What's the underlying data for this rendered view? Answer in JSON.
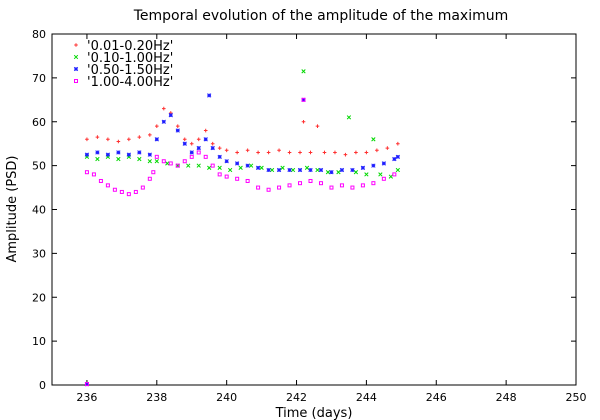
{
  "chart_data": {
    "type": "scatter",
    "title": "Temporal evolution of the amplitude of the maximum",
    "xlabel": "Time (days)",
    "ylabel": "Amplitude (PSD)",
    "xlim": [
      235,
      250
    ],
    "ylim": [
      0,
      80
    ],
    "xticks": [
      236,
      238,
      240,
      242,
      244,
      246,
      248,
      250
    ],
    "yticks": [
      0,
      10,
      20,
      30,
      40,
      50,
      60,
      70,
      80
    ],
    "grid": false,
    "legend_position": "top-left",
    "series": [
      {
        "name": "'0.01-0.20Hz'",
        "color": "#ff3030",
        "marker": "plus",
        "points": [
          [
            236.0,
            0.2
          ],
          [
            236.0,
            56.0
          ],
          [
            236.3,
            56.5
          ],
          [
            236.6,
            56.0
          ],
          [
            236.9,
            55.5
          ],
          [
            237.2,
            56.0
          ],
          [
            237.5,
            56.5
          ],
          [
            237.8,
            57.0
          ],
          [
            238.0,
            59.0
          ],
          [
            238.2,
            63.0
          ],
          [
            238.4,
            62.0
          ],
          [
            238.6,
            59.0
          ],
          [
            238.8,
            56.0
          ],
          [
            239.0,
            55.0
          ],
          [
            239.2,
            56.0
          ],
          [
            239.4,
            58.0
          ],
          [
            239.6,
            55.0
          ],
          [
            239.8,
            54.0
          ],
          [
            240.0,
            53.5
          ],
          [
            240.3,
            53.0
          ],
          [
            240.6,
            53.5
          ],
          [
            240.9,
            53.0
          ],
          [
            241.2,
            53.0
          ],
          [
            241.5,
            53.5
          ],
          [
            241.8,
            53.0
          ],
          [
            242.1,
            53.0
          ],
          [
            242.2,
            60.0
          ],
          [
            242.4,
            53.0
          ],
          [
            242.6,
            59.0
          ],
          [
            242.8,
            53.0
          ],
          [
            243.1,
            53.0
          ],
          [
            243.4,
            52.5
          ],
          [
            243.7,
            53.0
          ],
          [
            244.0,
            53.0
          ],
          [
            244.3,
            53.5
          ],
          [
            244.6,
            54.0
          ],
          [
            244.9,
            55.0
          ]
        ]
      },
      {
        "name": "'0.10-1.00Hz'",
        "color": "#00d800",
        "marker": "x",
        "points": [
          [
            236.0,
            0.2
          ],
          [
            236.0,
            52.0
          ],
          [
            236.3,
            51.5
          ],
          [
            236.6,
            52.0
          ],
          [
            236.9,
            51.5
          ],
          [
            237.2,
            52.0
          ],
          [
            237.5,
            51.5
          ],
          [
            237.8,
            51.0
          ],
          [
            238.0,
            51.0
          ],
          [
            238.3,
            50.5
          ],
          [
            238.6,
            50.0
          ],
          [
            238.9,
            50.0
          ],
          [
            239.2,
            50.0
          ],
          [
            239.5,
            49.5
          ],
          [
            239.8,
            49.5
          ],
          [
            240.1,
            49.0
          ],
          [
            240.4,
            49.5
          ],
          [
            240.7,
            50.0
          ],
          [
            241.0,
            49.5
          ],
          [
            241.3,
            49.0
          ],
          [
            241.6,
            49.5
          ],
          [
            241.9,
            49.0
          ],
          [
            242.2,
            71.5
          ],
          [
            242.3,
            49.5
          ],
          [
            242.6,
            49.0
          ],
          [
            242.9,
            48.5
          ],
          [
            243.2,
            48.5
          ],
          [
            243.5,
            61.0
          ],
          [
            243.7,
            48.5
          ],
          [
            244.0,
            48.0
          ],
          [
            244.2,
            56.0
          ],
          [
            244.4,
            48.0
          ],
          [
            244.7,
            47.5
          ],
          [
            244.9,
            49.0
          ]
        ]
      },
      {
        "name": "'0.50-1.50Hz'",
        "color": "#1f1fff",
        "marker": "star",
        "points": [
          [
            236.0,
            0.2
          ],
          [
            236.0,
            52.5
          ],
          [
            236.3,
            53.0
          ],
          [
            236.6,
            52.5
          ],
          [
            236.9,
            53.0
          ],
          [
            237.2,
            52.5
          ],
          [
            237.5,
            53.0
          ],
          [
            237.8,
            52.5
          ],
          [
            238.0,
            56.0
          ],
          [
            238.2,
            60.0
          ],
          [
            238.4,
            61.5
          ],
          [
            238.6,
            58.0
          ],
          [
            238.8,
            55.0
          ],
          [
            239.0,
            53.0
          ],
          [
            239.2,
            54.0
          ],
          [
            239.4,
            56.0
          ],
          [
            239.5,
            66.0
          ],
          [
            239.6,
            54.0
          ],
          [
            239.8,
            52.0
          ],
          [
            240.0,
            51.0
          ],
          [
            240.3,
            50.5
          ],
          [
            240.6,
            50.0
          ],
          [
            240.9,
            49.5
          ],
          [
            241.2,
            49.0
          ],
          [
            241.5,
            49.0
          ],
          [
            241.8,
            49.0
          ],
          [
            242.1,
            49.0
          ],
          [
            242.2,
            65.0
          ],
          [
            242.4,
            49.0
          ],
          [
            242.7,
            49.0
          ],
          [
            243.0,
            48.5
          ],
          [
            243.3,
            49.0
          ],
          [
            243.6,
            49.0
          ],
          [
            243.9,
            49.5
          ],
          [
            244.2,
            50.0
          ],
          [
            244.5,
            50.5
          ],
          [
            244.8,
            51.5
          ],
          [
            244.9,
            52.0
          ]
        ]
      },
      {
        "name": "'1.00-4.00Hz'",
        "color": "#ff00ff",
        "marker": "square",
        "points": [
          [
            236.0,
            0.2
          ],
          [
            236.0,
            48.5
          ],
          [
            236.2,
            48.0
          ],
          [
            236.4,
            46.5
          ],
          [
            236.6,
            45.5
          ],
          [
            236.8,
            44.5
          ],
          [
            237.0,
            44.0
          ],
          [
            237.2,
            43.5
          ],
          [
            237.4,
            44.0
          ],
          [
            237.6,
            45.0
          ],
          [
            237.8,
            47.0
          ],
          [
            237.9,
            48.5
          ],
          [
            238.0,
            52.0
          ],
          [
            238.2,
            51.0
          ],
          [
            238.4,
            50.5
          ],
          [
            238.6,
            50.0
          ],
          [
            238.8,
            51.0
          ],
          [
            239.0,
            52.0
          ],
          [
            239.2,
            53.0
          ],
          [
            239.4,
            52.0
          ],
          [
            239.6,
            50.0
          ],
          [
            239.8,
            48.0
          ],
          [
            240.0,
            47.5
          ],
          [
            240.3,
            47.0
          ],
          [
            240.6,
            46.5
          ],
          [
            240.9,
            45.0
          ],
          [
            241.2,
            44.5
          ],
          [
            241.5,
            45.0
          ],
          [
            241.8,
            45.5
          ],
          [
            242.1,
            46.0
          ],
          [
            242.2,
            65.0
          ],
          [
            242.4,
            46.5
          ],
          [
            242.7,
            46.0
          ],
          [
            243.0,
            45.0
          ],
          [
            243.3,
            45.5
          ],
          [
            243.6,
            45.0
          ],
          [
            243.9,
            45.5
          ],
          [
            244.2,
            46.0
          ],
          [
            244.5,
            47.0
          ],
          [
            244.8,
            48.0
          ]
        ]
      }
    ]
  }
}
